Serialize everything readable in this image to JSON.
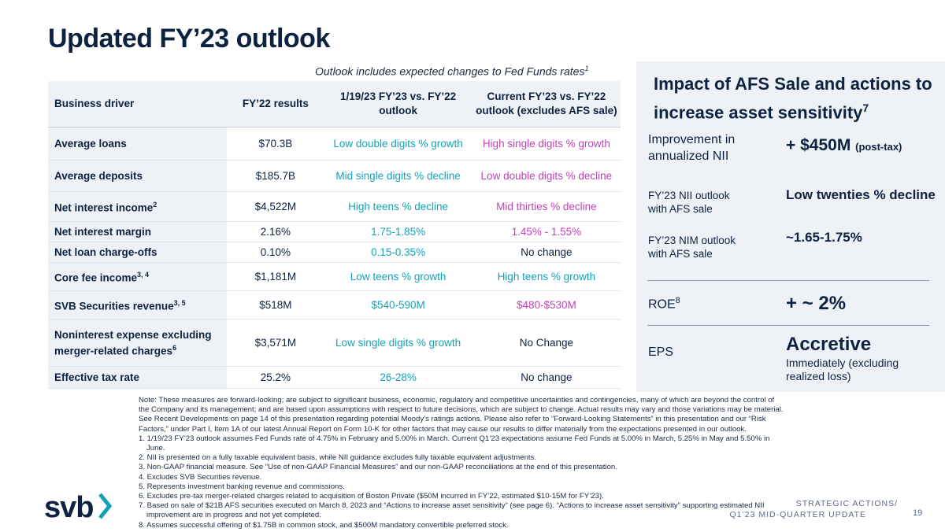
{
  "title": "Updated FY’23 outlook",
  "subtitle": "Outlook includes expected changes to Fed Funds rates",
  "subtitle_sup": "1",
  "table": {
    "headers": {
      "driver": "Business driver",
      "fy22": "FY’22 results",
      "jan": "1/19/23 FY’23 vs. FY’22 outlook",
      "current": "Current FY’23 vs. FY’22 outlook (excludes AFS sale)"
    },
    "rows": [
      {
        "driver": "Average loans",
        "sup": "",
        "fy22": "$70.3B",
        "jan": "Low double digits % growth",
        "current": "High single digits % growth"
      },
      {
        "driver": "Average deposits",
        "sup": "",
        "fy22": "$185.7B",
        "jan": "Mid single digits % decline",
        "current": "Low double digits % decline"
      },
      {
        "driver": "Net interest income",
        "sup": "2",
        "fy22": "$4,522M",
        "jan": "High teens % decline",
        "current": "Mid thirties % decline"
      },
      {
        "driver": "Net interest margin",
        "sup": "",
        "fy22": "2.16%",
        "jan": "1.75-1.85%",
        "current": "1.45% - 1.55%"
      },
      {
        "driver": "Net loan charge-offs",
        "sup": "",
        "fy22": "0.10%",
        "jan": "0.15-0.35%",
        "current": "No change"
      },
      {
        "driver": "Core fee income",
        "sup": "3, 4",
        "fy22": "$1,181M",
        "jan": "Low teens % growth",
        "current": "High teens % growth"
      },
      {
        "driver": "SVB Securities revenue",
        "sup": "3, 5",
        "fy22": "$518M",
        "jan": "$540-590M",
        "current": "$480-$530M"
      },
      {
        "driver": "Noninterest expense excluding merger-related charges",
        "sup": "6",
        "fy22": "$3,571M",
        "jan": "Low single digits % growth",
        "current": "No Change"
      },
      {
        "driver": "Effective tax rate",
        "sup": "",
        "fy22": "25.2%",
        "jan": "26-28%",
        "current": "No change"
      }
    ]
  },
  "panel": {
    "title": "Impact of AFS Sale and actions to increase asset sensitivity",
    "title_sup": "7",
    "nii_label": "Improvement in annualized NII",
    "nii_value": "+ $450M",
    "nii_note": "(post-tax)",
    "nii_outlook_label": "FY’23 NII outlook with AFS sale",
    "nii_outlook_value": "Low twenties % decline",
    "nim_outlook_label": "FY’23 NIM outlook with AFS sale",
    "nim_outlook_value": "~1.65-1.75%",
    "roe_label": "ROE",
    "roe_sup": "8",
    "roe_value": "+ ~ 2%",
    "eps_label": "EPS",
    "eps_value": "Accretive",
    "eps_note": "Immediately (excluding realized loss)"
  },
  "notes": {
    "intro": "Note: These measures are forward-looking; are subject to significant business, economic, regulatory and competitive uncertainties and contingencies, many of which are beyond the control of the Company and its management; and are based upon assumptions with respect to future decisions, which are subject to change. Actual results may vary and those variations may be material. See Recent Developments on page 14 of this presentation regarding potential Moody’s ratings actions. Please also refer to “Forward-Looking Statements” in this presentation and our “Risk Factors,” under Part I, Item 1A of our latest Annual Report on Form 10-K for other factors that may cause our results to differ materially from the expectations presented in our outlook.",
    "items": [
      "1. 1/19/23 FY’23 outlook assumes Fed Funds rate of 4.75% in February and 5.00% in March. Current Q1’23 expectations assume Fed Funds at 5.00% in March, 5.25% in May and 5.50% in June.",
      "2. NII is presented on a fully taxable equivalent basis, while NII guidance excludes fully taxable equivalent adjustments.",
      "3. Non-GAAP financial measure. See “Use of non-GAAP Financial Measures” and our non-GAAP reconciliations at the end of this presentation.",
      "4. Excludes SVB Securities revenue.",
      "5. Represents investment banking revenue and commissions.",
      "6. Excludes pre-tax merger-related charges related to acquisition of Boston Private ($50M incurred in FY’22, estimated $10-15M for FY’23).",
      "7. Based on sale of $21B AFS securities executed on March 8, 2023 and “Actions to increase asset sensitivity” (see page 6). “Actions to increase asset sensitivity” supporting estimated NII improvement are in progress and not yet completed.",
      "8. Assumes successful offering of $1.75B in common stock, and $500M mandatory convertible preferred stock."
    ]
  },
  "footer": {
    "logo": "svb",
    "line1": "STRATEGIC ACTIONS/",
    "line2": "Q1’23 MID-QUARTER UPDATE",
    "page": "19"
  },
  "colors": {
    "navy": "#0d2240",
    "teal": "#13a4b4",
    "magenta": "#c242b7",
    "panel_bg": "#eef1f6"
  }
}
